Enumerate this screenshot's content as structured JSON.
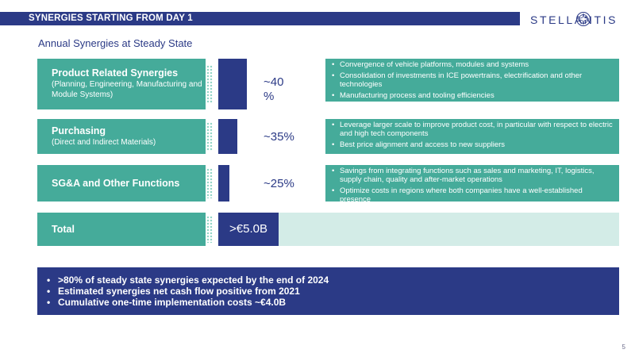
{
  "header": {
    "title": "SYNERGIES STARTING FROM DAY 1",
    "logo_text": "STELLANTIS"
  },
  "subtitle": "Annual Synergies at Steady State",
  "categories": [
    {
      "title": "Product Related Synergies",
      "subtitle": "(Planning, Engineering, Manufacturing and Module Systems)",
      "share": "~40 %",
      "share_value": 40
    },
    {
      "title": "Purchasing",
      "subtitle": "(Direct and Indirect Materials)",
      "share": "~35%",
      "share_value": 35
    },
    {
      "title": "SG&A and Other Functions",
      "subtitle": "",
      "share": "~25%",
      "share_value": 25
    }
  ],
  "bullets": [
    [
      "Convergence of vehicle platforms, modules and systems",
      "Consolidation of investments in ICE powertrains, electrification and other technologies",
      "Manufacturing process and tooling efficiencies"
    ],
    [
      "Leverage larger scale to improve product cost, in particular with respect to electric and high tech components",
      "Best price alignment and access to new suppliers"
    ],
    [
      "Savings from integrating functions such as sales and marketing, IT, logistics, supply chain, quality and after-market operations",
      "Optimize costs in regions where both companies have a well-established presence"
    ]
  ],
  "total": {
    "label": "Total",
    "value": ">€5.0B"
  },
  "summary": [
    ">80% of steady state synergies expected by the end of 2024",
    "Estimated synergies net cash flow positive from 2021",
    "Cumulative one-time implementation costs ~€4.0B"
  ],
  "page_number": "5",
  "colors": {
    "navy": "#2b3a86",
    "teal": "#45ab9a",
    "light_teal": "#d3ece7"
  }
}
